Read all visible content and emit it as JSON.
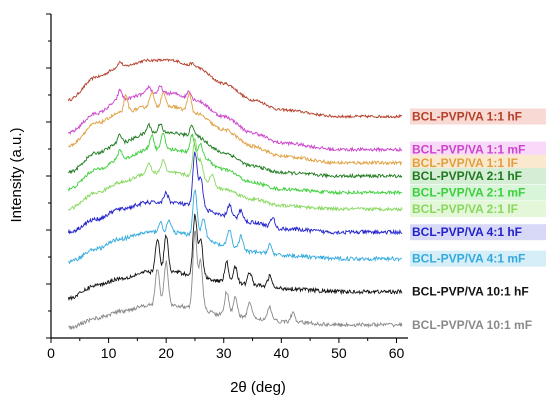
{
  "chart_data": {
    "type": "line",
    "title": "",
    "xlabel": "2θ (deg)",
    "ylabel": "Intensity (a.u.)",
    "xlim": [
      0,
      62
    ],
    "xticks": [
      0,
      10,
      20,
      30,
      40,
      50,
      60
    ],
    "yticks_labeled": false,
    "grid": false,
    "legend": "right, next to each curve",
    "series": [
      {
        "name": "BCL-PVP/VA 1:1 hF",
        "color": "#b5402a",
        "label_bg": "#f8d9d3",
        "points": [
          [
            3,
            4.6
          ],
          [
            8,
            5.3
          ],
          [
            12,
            5.6
          ],
          [
            17,
            5.8
          ],
          [
            21,
            5.8
          ],
          [
            25,
            5.6
          ],
          [
            30,
            5.1
          ],
          [
            35,
            4.6
          ],
          [
            40,
            4.3
          ],
          [
            50,
            4.1
          ],
          [
            61,
            4.1
          ]
        ],
        "peaks": [
          [
            12,
            0.15
          ],
          [
            24.5,
            0.1
          ]
        ],
        "noise": 0.04
      },
      {
        "name": "BCL-PVP/VA 1:1 mF",
        "color": "#cc44cc",
        "label_bg": "#f9d9f9",
        "points": [
          [
            3,
            3.6
          ],
          [
            8,
            4.2
          ],
          [
            12,
            4.6
          ],
          [
            17,
            4.8
          ],
          [
            21,
            4.8
          ],
          [
            25,
            4.6
          ],
          [
            30,
            4.1
          ],
          [
            35,
            3.6
          ],
          [
            40,
            3.3
          ],
          [
            50,
            3.1
          ],
          [
            61,
            3.1
          ]
        ],
        "peaks": [
          [
            12,
            0.3
          ],
          [
            17,
            0.2
          ],
          [
            19,
            0.2
          ],
          [
            24,
            0.25
          ]
        ],
        "noise": 0.05
      },
      {
        "name": "BCL-PVP/VA 1:1 lF",
        "color": "#e0a040",
        "label_bg": "#fbe9cf",
        "points": [
          [
            3,
            3.2
          ],
          [
            8,
            3.9
          ],
          [
            12,
            4.2
          ],
          [
            17,
            4.4
          ],
          [
            21,
            4.4
          ],
          [
            25,
            4.2
          ],
          [
            30,
            3.7
          ],
          [
            35,
            3.2
          ],
          [
            40,
            2.9
          ],
          [
            50,
            2.7
          ],
          [
            61,
            2.7
          ]
        ],
        "peaks": [
          [
            13,
            0.5
          ],
          [
            17.5,
            0.45
          ],
          [
            19.5,
            0.45
          ],
          [
            24,
            0.55
          ]
        ],
        "noise": 0.05
      },
      {
        "name": "BCL-PVP/VA 2:1 hF",
        "color": "#1e7a1e",
        "label_bg": "#d5ecd5",
        "points": [
          [
            3,
            2.4
          ],
          [
            8,
            3.0
          ],
          [
            12,
            3.3
          ],
          [
            17,
            3.6
          ],
          [
            21,
            3.6
          ],
          [
            25,
            3.5
          ],
          [
            30,
            3.0
          ],
          [
            35,
            2.6
          ],
          [
            40,
            2.4
          ],
          [
            50,
            2.3
          ],
          [
            61,
            2.3
          ]
        ],
        "peaks": [
          [
            12,
            0.25
          ],
          [
            17,
            0.25
          ],
          [
            19,
            0.3
          ],
          [
            24.5,
            0.35
          ]
        ],
        "noise": 0.05
      },
      {
        "name": "BCL-PVP/VA 2:1 mF",
        "color": "#3ccf3c",
        "label_bg": "#d9f5d9",
        "points": [
          [
            3,
            1.9
          ],
          [
            8,
            2.5
          ],
          [
            12,
            2.8
          ],
          [
            17,
            3.1
          ],
          [
            21,
            3.1
          ],
          [
            25,
            3.0
          ],
          [
            30,
            2.5
          ],
          [
            35,
            2.1
          ],
          [
            40,
            1.9
          ],
          [
            50,
            1.8
          ],
          [
            61,
            1.8
          ]
        ],
        "peaks": [
          [
            12,
            0.3
          ],
          [
            17.5,
            0.45
          ],
          [
            19.5,
            0.5
          ],
          [
            24.5,
            0.55
          ],
          [
            26,
            0.3
          ]
        ],
        "noise": 0.05
      },
      {
        "name": "BCL-PVP/VA 2:1 lF",
        "color": "#88d860",
        "label_bg": "#e4f7d8",
        "points": [
          [
            3,
            1.3
          ],
          [
            8,
            1.8
          ],
          [
            12,
            2.1
          ],
          [
            17,
            2.4
          ],
          [
            21,
            2.4
          ],
          [
            25,
            2.3
          ],
          [
            30,
            1.9
          ],
          [
            35,
            1.6
          ],
          [
            40,
            1.4
          ],
          [
            50,
            1.3
          ],
          [
            61,
            1.3
          ]
        ],
        "peaks": [
          [
            17,
            0.3
          ],
          [
            19.5,
            0.4
          ],
          [
            25,
            1.1
          ],
          [
            26,
            0.5
          ],
          [
            28,
            0.3
          ]
        ],
        "noise": 0.05
      },
      {
        "name": "BCL-PVP/VA 4:1 hF",
        "color": "#2222cc",
        "label_bg": "#d8d8f7",
        "points": [
          [
            3,
            0.6
          ],
          [
            8,
            1.0
          ],
          [
            12,
            1.3
          ],
          [
            17,
            1.5
          ],
          [
            21,
            1.5
          ],
          [
            25,
            1.4
          ],
          [
            30,
            1.1
          ],
          [
            35,
            0.9
          ],
          [
            40,
            0.7
          ],
          [
            50,
            0.6
          ],
          [
            61,
            0.6
          ]
        ],
        "peaks": [
          [
            20,
            0.3
          ],
          [
            25,
            1.6
          ],
          [
            26,
            0.9
          ],
          [
            31,
            0.35
          ],
          [
            33,
            0.3
          ],
          [
            38.5,
            0.3
          ]
        ],
        "noise": 0.06
      },
      {
        "name": "BCL-PVP/VA 4:1 mF",
        "color": "#33aadd",
        "label_bg": "#d6eef8",
        "points": [
          [
            3,
            -0.3
          ],
          [
            8,
            0.1
          ],
          [
            12,
            0.4
          ],
          [
            17,
            0.6
          ],
          [
            21,
            0.6
          ],
          [
            25,
            0.5
          ],
          [
            30,
            0.2
          ],
          [
            35,
            0.0
          ],
          [
            40,
            -0.1
          ],
          [
            50,
            -0.2
          ],
          [
            61,
            -0.2
          ]
        ],
        "peaks": [
          [
            19,
            0.3
          ],
          [
            20.5,
            0.35
          ],
          [
            25,
            1.4
          ],
          [
            26.5,
            0.6
          ],
          [
            31,
            0.5
          ],
          [
            33,
            0.4
          ],
          [
            38,
            0.3
          ]
        ],
        "noise": 0.06
      },
      {
        "name": "BCL-PVP/VA 10:1 hF",
        "color": "#111111",
        "label_bg": "#ffffff",
        "points": [
          [
            3,
            -1.4
          ],
          [
            8,
            -1.0
          ],
          [
            12,
            -0.8
          ],
          [
            17,
            -0.6
          ],
          [
            21,
            -0.6
          ],
          [
            25,
            -0.7
          ],
          [
            30,
            -0.9
          ],
          [
            35,
            -1.0
          ],
          [
            40,
            -1.1
          ],
          [
            50,
            -1.2
          ],
          [
            61,
            -1.2
          ]
        ],
        "peaks": [
          [
            18.5,
            1.0
          ],
          [
            20,
            1.1
          ],
          [
            25,
            1.8
          ],
          [
            26,
            1.1
          ],
          [
            30.5,
            0.6
          ],
          [
            32,
            0.5
          ],
          [
            34.5,
            0.4
          ],
          [
            38,
            0.35
          ]
        ],
        "noise": 0.06
      },
      {
        "name": "BCL-PVP/VA 10:1 mF",
        "color": "#8a8a8a",
        "label_bg": "#ffffff",
        "points": [
          [
            3,
            -2.3
          ],
          [
            8,
            -2.0
          ],
          [
            12,
            -1.8
          ],
          [
            17,
            -1.6
          ],
          [
            21,
            -1.6
          ],
          [
            25,
            -1.7
          ],
          [
            30,
            -1.9
          ],
          [
            35,
            -2.0
          ],
          [
            40,
            -2.1
          ],
          [
            50,
            -2.2
          ],
          [
            61,
            -2.2
          ]
        ],
        "peaks": [
          [
            18.5,
            1.1
          ],
          [
            20,
            1.3
          ],
          [
            25,
            2.3
          ],
          [
            26,
            1.4
          ],
          [
            30.5,
            0.7
          ],
          [
            32,
            0.6
          ],
          [
            34.5,
            0.5
          ],
          [
            38,
            0.4
          ],
          [
            42,
            0.25
          ]
        ],
        "noise": 0.06
      }
    ],
    "ylim": [
      -2.6,
      7.2
    ]
  }
}
